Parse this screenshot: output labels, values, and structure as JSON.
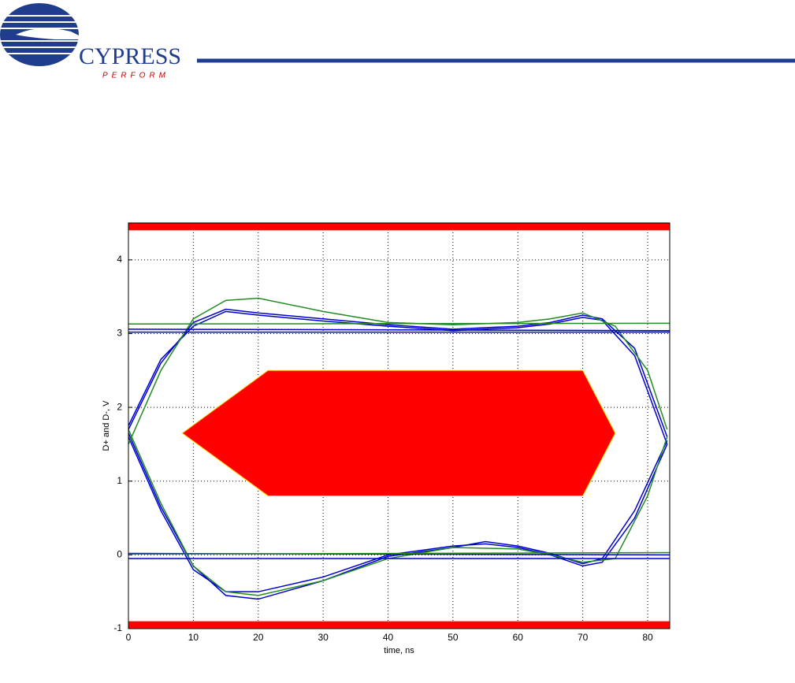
{
  "header": {
    "brand": "CYPRESS",
    "tagline": "PERFORM"
  },
  "chart_data": {
    "type": "line",
    "xlabel": "time, ns",
    "ylabel": "D+ and D-, V",
    "xlim": [
      0,
      83.4
    ],
    "ylim": [
      -1,
      4.5
    ],
    "xticks": [
      0,
      10,
      20,
      30,
      40,
      50,
      60,
      70,
      80
    ],
    "yticks": [
      -1,
      0,
      1,
      2,
      3,
      4
    ],
    "grid": true,
    "mask_color": "#ff0000",
    "masks": [
      {
        "x": [
          0,
          83.4,
          83.4,
          0
        ],
        "values": [
          4.4,
          4.4,
          4.5,
          4.5
        ]
      },
      {
        "x": [
          0,
          83.4,
          83.4,
          0
        ],
        "values": [
          -1,
          -1,
          -0.9,
          -0.9
        ]
      },
      {
        "x": [
          8.3,
          21.5,
          70,
          75,
          70,
          21.5
        ],
        "values": [
          1.65,
          2.5,
          2.5,
          1.65,
          0.8,
          0.8
        ]
      }
    ],
    "series": [
      {
        "color": "#0000cc",
        "x": [
          0,
          5,
          10,
          15,
          20,
          30,
          40,
          50,
          60,
          65,
          70,
          73,
          78,
          83
        ],
        "values": [
          1.7,
          2.6,
          3.15,
          3.33,
          3.28,
          3.2,
          3.12,
          3.06,
          3.1,
          3.15,
          3.25,
          3.2,
          2.8,
          1.6
        ]
      },
      {
        "color": "#0000cc",
        "x": [
          0,
          5,
          10,
          15,
          20,
          30,
          40,
          50,
          60,
          65,
          70,
          73,
          78,
          83
        ],
        "values": [
          1.75,
          2.65,
          3.1,
          3.3,
          3.25,
          3.17,
          3.1,
          3.04,
          3.08,
          3.13,
          3.22,
          3.18,
          2.7,
          1.5
        ]
      },
      {
        "color": "#0000cc",
        "x": [
          0,
          5,
          10,
          15,
          20,
          30,
          40,
          50,
          55,
          60,
          65,
          70,
          73,
          78,
          83
        ],
        "values": [
          1.6,
          0.6,
          -0.2,
          -0.5,
          -0.5,
          -0.3,
          0,
          0.12,
          0.15,
          0.1,
          0,
          -0.15,
          -0.1,
          0.5,
          1.5
        ]
      },
      {
        "color": "#0000cc",
        "x": [
          0,
          5,
          10,
          15,
          20,
          30,
          40,
          50,
          55,
          60,
          65,
          70,
          73,
          78,
          83
        ],
        "values": [
          1.65,
          0.65,
          -0.15,
          -0.55,
          -0.6,
          -0.35,
          -0.02,
          0.1,
          0.18,
          0.12,
          0.02,
          -0.12,
          -0.05,
          0.6,
          1.55
        ]
      },
      {
        "color": "#228b22",
        "x": [
          0,
          5,
          10,
          15,
          20,
          30,
          40,
          50,
          60,
          65,
          70,
          75,
          80,
          83
        ],
        "values": [
          1.5,
          2.5,
          3.2,
          3.45,
          3.48,
          3.3,
          3.15,
          3.12,
          3.15,
          3.2,
          3.28,
          3.1,
          2.5,
          1.7
        ]
      },
      {
        "color": "#228b22",
        "x": [
          0,
          5,
          10,
          15,
          20,
          30,
          40,
          50,
          60,
          65,
          70,
          75,
          80,
          83
        ],
        "values": [
          1.7,
          0.7,
          -0.15,
          -0.5,
          -0.55,
          -0.35,
          -0.05,
          0.1,
          0.08,
          0,
          -0.1,
          -0.05,
          0.8,
          1.6
        ]
      },
      {
        "color": "#0000cc",
        "x": [
          0,
          83.4
        ],
        "values": [
          3.02,
          3.02
        ]
      },
      {
        "color": "#0000cc",
        "x": [
          0,
          83.4
        ],
        "values": [
          3.06,
          3.04
        ]
      },
      {
        "color": "#228b22",
        "x": [
          0,
          83.4
        ],
        "values": [
          3.13,
          3.14
        ]
      },
      {
        "color": "#0000cc",
        "x": [
          0,
          83.4
        ],
        "values": [
          -0.05,
          -0.05
        ]
      },
      {
        "color": "#0000cc",
        "x": [
          0,
          83.4
        ],
        "values": [
          0.02,
          0.0
        ]
      },
      {
        "color": "#228b22",
        "x": [
          0,
          83.4
        ],
        "values": [
          0.01,
          0.03
        ]
      }
    ]
  }
}
